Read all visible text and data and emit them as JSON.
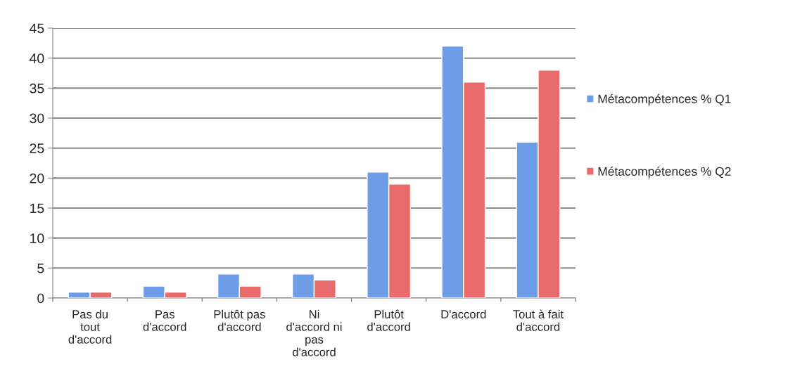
{
  "chart_data": {
    "type": "bar",
    "categories": [
      "Pas du\ntout\nd'accord",
      "Pas\nd'accord",
      "Plutôt pas\nd'accord",
      "Ni\nd'accord ni\npas\nd'accord",
      "Plutôt\nd'accord",
      "D'accord",
      "Tout à fait\nd'accord"
    ],
    "series": [
      {
        "name": "Métacompétences % Q1",
        "color": "#6d9de6",
        "values": [
          1,
          2,
          4,
          4,
          21,
          42,
          26
        ]
      },
      {
        "name": "Métacompétences % Q2",
        "color": "#e86a6a",
        "values": [
          1,
          1,
          2,
          3,
          19,
          36,
          38
        ]
      }
    ],
    "ylim": [
      0,
      45
    ],
    "yticks": [
      0,
      5,
      10,
      15,
      20,
      25,
      30,
      35,
      40,
      45
    ],
    "grid": "y",
    "legend": "right"
  }
}
